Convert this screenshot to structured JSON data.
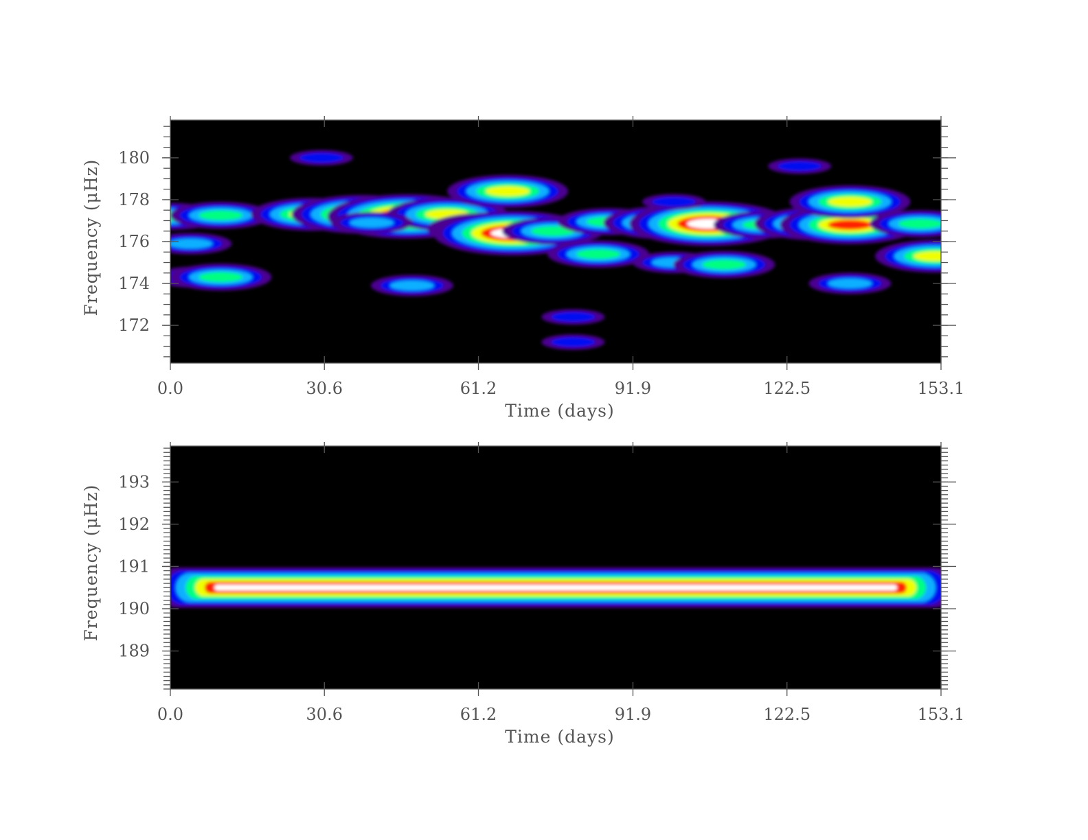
{
  "chart_data": [
    {
      "type": "heatmap",
      "subtype": "filled-contour time-frequency map",
      "xlabel": "Time (days)",
      "ylabel": "Frequency (μHz)",
      "x_ticks": [
        "0.0",
        "30.6",
        "61.2",
        "91.9",
        "122.5",
        "153.1"
      ],
      "y_ticks": [
        "172",
        "174",
        "176",
        "178",
        "180"
      ],
      "xlim": [
        0,
        153.1
      ],
      "ylim": [
        170.2,
        181.8
      ],
      "colormap": [
        "#000000",
        "#4b0090",
        "#0010f0",
        "#10b0ff",
        "#00ff80",
        "#f0ff00",
        "#ff2000",
        "#ffffff"
      ],
      "features": [
        {
          "x": 0,
          "y": 177.2,
          "level": 4
        },
        {
          "x": 10,
          "y": 177.25,
          "level": 4
        },
        {
          "x": 28,
          "y": 177.3,
          "level": 5
        },
        {
          "x": 38,
          "y": 177.3,
          "level": 6
        },
        {
          "x": 47,
          "y": 177.2,
          "level": 7
        },
        {
          "x": 55,
          "y": 177.3,
          "level": 5
        },
        {
          "x": 40,
          "y": 176.9,
          "level": 3
        },
        {
          "x": 63,
          "y": 176.6,
          "level": 5
        },
        {
          "x": 68,
          "y": 176.4,
          "level": 7
        },
        {
          "x": 76,
          "y": 176.5,
          "level": 4
        },
        {
          "x": 67,
          "y": 178.4,
          "level": 5
        },
        {
          "x": 87,
          "y": 176.95,
          "level": 4
        },
        {
          "x": 98,
          "y": 176.9,
          "level": 5
        },
        {
          "x": 107,
          "y": 176.85,
          "level": 7
        },
        {
          "x": 118,
          "y": 176.8,
          "level": 4
        },
        {
          "x": 128,
          "y": 176.85,
          "level": 5
        },
        {
          "x": 135,
          "y": 176.8,
          "level": 6
        },
        {
          "x": 149,
          "y": 176.85,
          "level": 4
        },
        {
          "x": 85,
          "y": 175.4,
          "level": 4
        },
        {
          "x": 100,
          "y": 175.0,
          "level": 3
        },
        {
          "x": 110,
          "y": 174.9,
          "level": 4
        },
        {
          "x": 152,
          "y": 175.3,
          "level": 5
        },
        {
          "x": 135,
          "y": 177.9,
          "level": 5
        },
        {
          "x": 5,
          "y": 174.3,
          "level": 3
        },
        {
          "x": 10,
          "y": 174.3,
          "level": 4
        },
        {
          "x": 4,
          "y": 175.9,
          "level": 3
        },
        {
          "x": 48,
          "y": 173.9,
          "level": 3
        },
        {
          "x": 135,
          "y": 174.0,
          "level": 3
        },
        {
          "x": 80,
          "y": 171.2,
          "level": 2
        },
        {
          "x": 80,
          "y": 172.4,
          "level": 2
        },
        {
          "x": 30,
          "y": 180.0,
          "level": 2
        },
        {
          "x": 125,
          "y": 179.6,
          "level": 2
        },
        {
          "x": 100,
          "y": 177.9,
          "level": 2
        }
      ]
    },
    {
      "type": "heatmap",
      "subtype": "filled-contour time-frequency map",
      "xlabel": "Time (days)",
      "ylabel": "Frequency (μHz)",
      "x_ticks": [
        "0.0",
        "30.6",
        "61.2",
        "91.9",
        "122.5",
        "153.1"
      ],
      "y_ticks": [
        "189",
        "190",
        "191",
        "192",
        "193"
      ],
      "xlim": [
        0,
        153.1
      ],
      "ylim": [
        188.1,
        193.85
      ],
      "colormap": [
        "#000000",
        "#4b0090",
        "#0010f0",
        "#10b0ff",
        "#00ff80",
        "#f0ff00",
        "#ff2000",
        "#ffffff"
      ],
      "features": [
        {
          "x_range": [
            0,
            153.1
          ],
          "y": 190.5,
          "level": 7,
          "note": "single constant-frequency ridge across full time range"
        }
      ]
    }
  ]
}
